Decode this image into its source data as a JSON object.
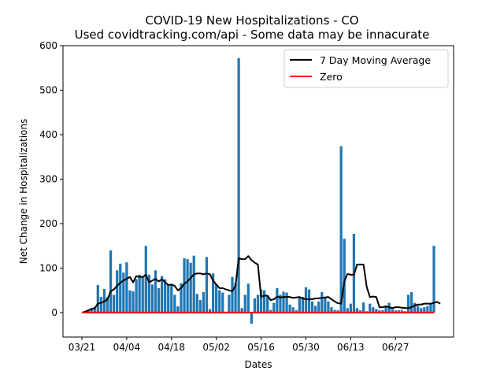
{
  "chart_data": {
    "type": "bar",
    "title": "COVID-19 New Hospitalizations - CO",
    "subtitle": "Used covidtracking.com/api - Some data may be innacurate",
    "xlabel": "Dates",
    "ylabel": "Net Change in Hospitalizations",
    "ylim": [
      -55,
      600
    ],
    "yticks": [
      0,
      100,
      200,
      300,
      400,
      500,
      600
    ],
    "ytick_labels": [
      "0",
      "100",
      "200",
      "300",
      "400",
      "500",
      "600"
    ],
    "xtick_labels": [
      "03/21",
      "04/04",
      "04/18",
      "05/02",
      "05/16",
      "05/30",
      "06/13",
      "06/27"
    ],
    "xtick_day_index": [
      0,
      14,
      28,
      42,
      56,
      70,
      84,
      98
    ],
    "start_date": "03/21",
    "day_count": 113,
    "values": [
      0,
      2,
      5,
      10,
      12,
      62,
      35,
      53,
      35,
      140,
      40,
      95,
      110,
      90,
      113,
      50,
      48,
      75,
      85,
      80,
      150,
      85,
      63,
      95,
      55,
      82,
      75,
      62,
      63,
      40,
      14,
      66,
      122,
      120,
      112,
      128,
      42,
      28,
      46,
      125,
      8,
      88,
      65,
      50,
      45,
      2,
      40,
      80,
      66,
      572,
      10,
      40,
      65,
      -25,
      32,
      40,
      52,
      50,
      36,
      6,
      22,
      55,
      40,
      47,
      45,
      18,
      12,
      5,
      35,
      35,
      57,
      52,
      25,
      15,
      25,
      46,
      34,
      25,
      12,
      6,
      5,
      374,
      166,
      10,
      20,
      177,
      10,
      5,
      23,
      3,
      20,
      12,
      8,
      5,
      5,
      13,
      22,
      8,
      5,
      5,
      5,
      3,
      40,
      46,
      22,
      15,
      10,
      12,
      15,
      20,
      150
    ],
    "series": [
      {
        "name": "7 Day Moving Average",
        "color": "#000000",
        "values": [
          0,
          2,
          5,
          8,
          10,
          20,
          22,
          25,
          30,
          48,
          52,
          60,
          67,
          72,
          76,
          80,
          68,
          82,
          80,
          80,
          85,
          68,
          72,
          76,
          70,
          75,
          68,
          62,
          63,
          60,
          50,
          55,
          65,
          70,
          78,
          86,
          88,
          88,
          86,
          88,
          86,
          72,
          63,
          55,
          55,
          52,
          50,
          48,
          60,
          122,
          120,
          120,
          127,
          118,
          112,
          108,
          35,
          38,
          38,
          28,
          30,
          36,
          34,
          35,
          35,
          35,
          33,
          34,
          35,
          32,
          30,
          30,
          30,
          32,
          32,
          33,
          34,
          35,
          30,
          25,
          21,
          20,
          70,
          87,
          85,
          85,
          108,
          108,
          108,
          58,
          35,
          36,
          35,
          12,
          12,
          14,
          12,
          10,
          12,
          12,
          11,
          10,
          10,
          12,
          16,
          18,
          18,
          20,
          20,
          20,
          22,
          24,
          20
        ]
      },
      {
        "name": "Zero",
        "color": "#ff0000",
        "values": [
          0,
          0
        ]
      }
    ],
    "bar_color": "#1f77b4",
    "legend": {
      "position": "top-right",
      "entries": [
        "7 Day Moving Average",
        "Zero"
      ]
    },
    "grid": false
  }
}
